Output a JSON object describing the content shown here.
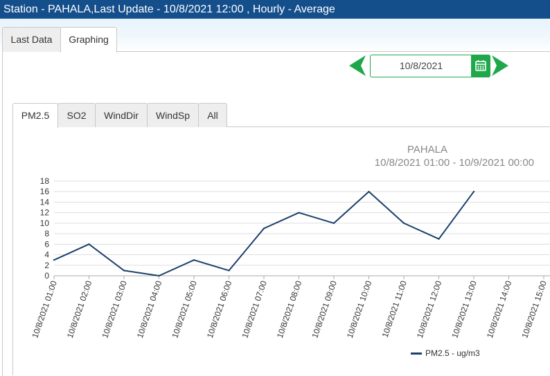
{
  "header": {
    "title": "Station - PAHALA,Last Update - 10/8/2021 12:00 , Hourly - Average"
  },
  "main_tabs": [
    {
      "label": "Last Data",
      "active": false
    },
    {
      "label": "Graphing",
      "active": true
    }
  ],
  "date_picker": {
    "value": "10/8/2021",
    "prev_icon": "chevron-left-icon",
    "next_icon": "chevron-right-icon",
    "calendar_icon": "calendar-icon"
  },
  "pollutant_tabs": [
    {
      "label": "PM2.5",
      "active": true
    },
    {
      "label": "SO2",
      "active": false
    },
    {
      "label": "WindDir",
      "active": false
    },
    {
      "label": "WindSp",
      "active": false
    },
    {
      "label": "All",
      "active": false
    }
  ],
  "colors": {
    "header_bg": "#144f8c",
    "accent_green": "#1fa84a",
    "series_line": "#1b3f6b"
  },
  "chart_data": {
    "type": "line",
    "title": "PAHALA",
    "subtitle": "10/8/2021 01:00  -  10/9/2021 00:00",
    "xlabel": "",
    "ylabel": "",
    "ylim": [
      0,
      18
    ],
    "yticks": [
      "0",
      "2",
      "4",
      "6",
      "8",
      "10",
      "12",
      "14",
      "16",
      "18"
    ],
    "categories": [
      "10/8/2021 01:00",
      "10/8/2021 02:00",
      "10/8/2021 03:00",
      "10/8/2021 04:00",
      "10/8/2021 05:00",
      "10/8/2021 06:00",
      "10/8/2021 07:00",
      "10/8/2021 08:00",
      "10/8/2021 09:00",
      "10/8/2021 10:00",
      "10/8/2021 11:00",
      "10/8/2021 12:00",
      "10/8/2021 13:00",
      "10/8/2021 14:00",
      "10/8/2021 15:00"
    ],
    "series": [
      {
        "name": "PM2.5 - ug/m3",
        "values": [
          3,
          6,
          1,
          0,
          3,
          1,
          9,
          12,
          10,
          16,
          10,
          7,
          16,
          null,
          null
        ]
      }
    ],
    "grid": true,
    "legend": "bottom-right"
  }
}
